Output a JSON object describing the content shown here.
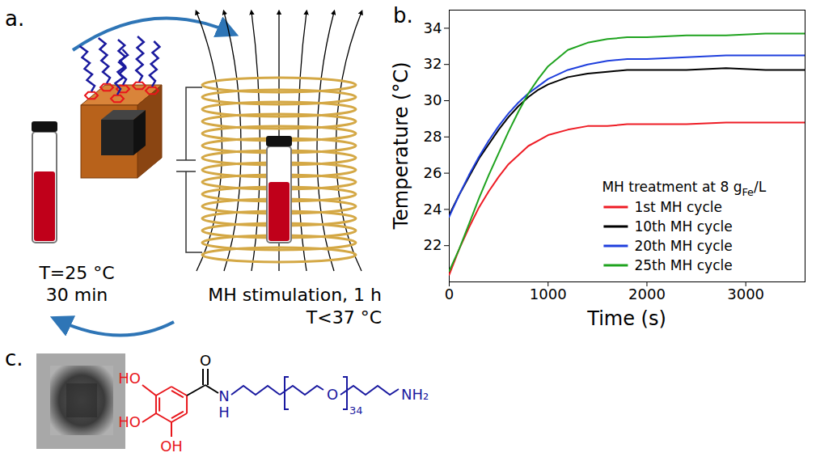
{
  "panel_a": {
    "label": "a.",
    "vial_texts": [
      "T=25 °C",
      "30 min"
    ],
    "coil_texts": [
      "MH stimulation, 1 h",
      "T<37 °C"
    ]
  },
  "panel_b": {
    "label": "b."
  },
  "chart_data": {
    "type": "line",
    "x_label": "Time (s)",
    "y_label": "Temperature (°C)",
    "x": [
      0,
      100,
      200,
      300,
      400,
      500,
      600,
      700,
      800,
      900,
      1000,
      1200,
      1400,
      1600,
      1800,
      2000,
      2400,
      2800,
      3200,
      3600
    ],
    "xlim": [
      0,
      3600
    ],
    "xticks": [
      0,
      1000,
      2000,
      3000
    ],
    "ylim": [
      20,
      35
    ],
    "yticks": [
      22,
      24,
      26,
      28,
      30,
      32,
      34
    ],
    "grid": false,
    "legend": "lower right",
    "legend_title": {
      "text": "MH treatment at 8 g",
      "subscript": "Fe",
      "after": "/L"
    },
    "series": [
      {
        "name": "1st MH cycle",
        "color": "#ee1c25",
        "values": [
          20.4,
          21.8,
          23.0,
          24.1,
          25.0,
          25.8,
          26.5,
          27.0,
          27.5,
          27.8,
          28.1,
          28.4,
          28.6,
          28.6,
          28.7,
          28.7,
          28.7,
          28.8,
          28.8,
          28.8
        ]
      },
      {
        "name": "10th MH cycle",
        "color": "#000000",
        "values": [
          23.7,
          24.8,
          25.8,
          26.8,
          27.6,
          28.4,
          29.1,
          29.7,
          30.2,
          30.6,
          30.9,
          31.3,
          31.5,
          31.6,
          31.7,
          31.7,
          31.7,
          31.8,
          31.7,
          31.7
        ]
      },
      {
        "name": "20th MH cycle",
        "color": "#1f3fdd",
        "values": [
          23.6,
          24.8,
          25.9,
          26.9,
          27.8,
          28.6,
          29.3,
          29.9,
          30.4,
          30.8,
          31.2,
          31.7,
          32.0,
          32.2,
          32.3,
          32.3,
          32.4,
          32.5,
          32.5,
          32.5
        ]
      },
      {
        "name": "25th MH cycle",
        "color": "#1fa31f",
        "values": [
          20.6,
          21.8,
          23.2,
          24.6,
          25.9,
          27.1,
          28.3,
          29.4,
          30.4,
          31.2,
          31.9,
          32.8,
          33.2,
          33.4,
          33.5,
          33.5,
          33.6,
          33.6,
          33.7,
          33.7
        ]
      }
    ]
  },
  "panel_c": {
    "label": "c.",
    "hydroxyls": [
      "HO",
      "HO",
      "OH"
    ],
    "carbonyl_O": "O",
    "amide_N": "N",
    "amide_H": "H",
    "repeat_O": "O",
    "repeat_count": 34,
    "amine": "NH₂"
  }
}
